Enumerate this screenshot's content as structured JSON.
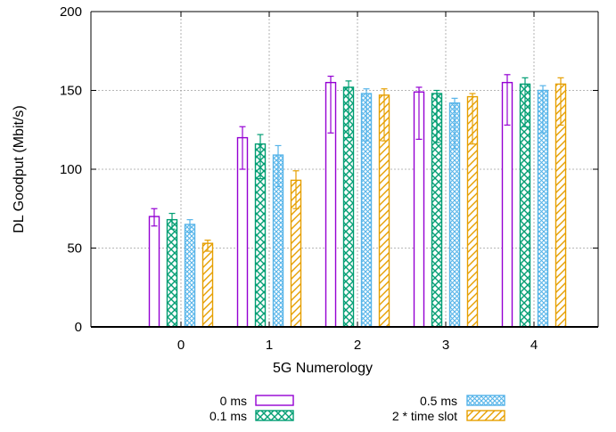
{
  "chart_data": {
    "type": "bar",
    "title": "",
    "xlabel": "5G Numerology",
    "ylabel": "DL Goodput (Mbit/s)",
    "ylim": [
      0,
      200
    ],
    "yticks": [
      0,
      50,
      100,
      150,
      200
    ],
    "categories": [
      "0",
      "1",
      "2",
      "3",
      "4"
    ],
    "grid": true,
    "legend_position": "bottom",
    "series": [
      {
        "name": "0 ms",
        "color": "#9400d3",
        "pattern": "empty",
        "values": [
          70,
          120,
          155,
          149,
          155
        ],
        "err_low": [
          64,
          100,
          123,
          119,
          128
        ],
        "err_high": [
          75,
          127,
          159,
          152,
          160
        ]
      },
      {
        "name": "0.1 ms",
        "color": "#009e73",
        "pattern": "crosshatch",
        "values": [
          68,
          116,
          152,
          148,
          154
        ],
        "err_low": [
          62,
          94,
          120,
          117,
          127
        ],
        "err_high": [
          72,
          122,
          156,
          150,
          158
        ]
      },
      {
        "name": "0.5 ms",
        "color": "#56b4e9",
        "pattern": "fine-crosshatch",
        "values": [
          65,
          109,
          148,
          142,
          150
        ],
        "err_low": [
          60,
          89,
          118,
          113,
          123
        ],
        "err_high": [
          68,
          115,
          151,
          145,
          153
        ]
      },
      {
        "name": "2 * time slot",
        "color": "#e69f00",
        "pattern": "diagonal",
        "values": [
          53,
          93,
          147,
          146,
          154
        ],
        "err_low": [
          48,
          75,
          118,
          116,
          128
        ],
        "err_high": [
          55,
          99,
          151,
          148,
          158
        ]
      }
    ]
  }
}
